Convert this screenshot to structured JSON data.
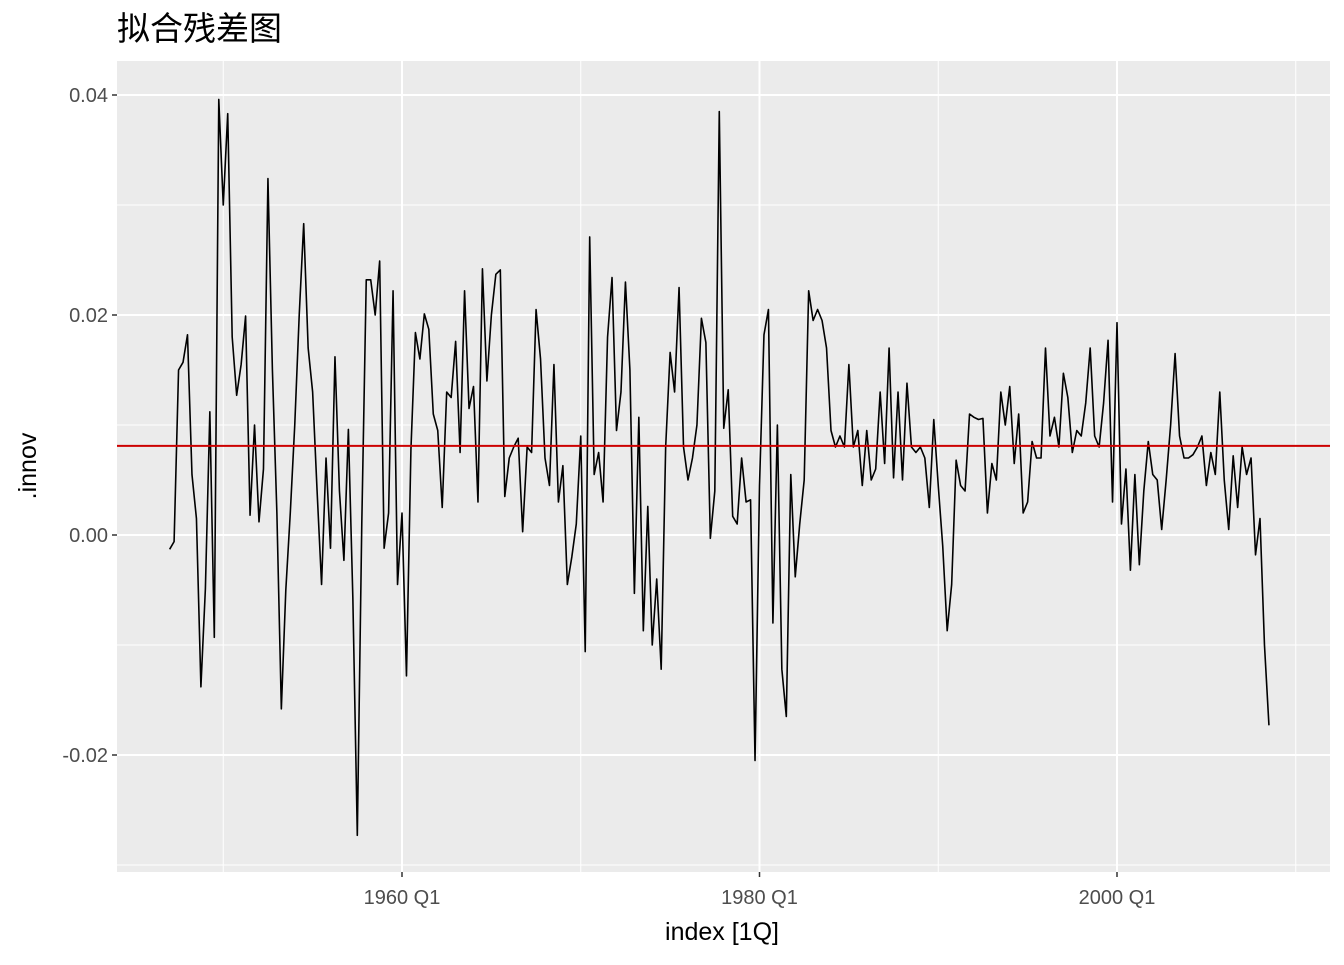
{
  "chart_data": {
    "type": "line",
    "title": "拟合残差图",
    "xlabel": "index [1Q]",
    "ylabel": ".innov",
    "x_start_year": 1947,
    "x_ticks": [
      "1960 Q1",
      "1980 Q1",
      "2000 Q1"
    ],
    "y_ticks": [
      "-0.02",
      "0.00",
      "0.02",
      "0.04"
    ],
    "ylim": [
      -0.03,
      0.0405
    ],
    "grid": true,
    "series": [
      {
        "color": "#000000",
        "values": [
          -0.0013,
          -0.0006,
          0.015,
          0.0157,
          0.0182,
          0.0055,
          0.0015,
          -0.0138,
          -0.0049,
          0.0112,
          -0.0093,
          0.0396,
          0.03,
          0.0383,
          0.018,
          0.0127,
          0.0155,
          0.0199,
          0.0018,
          0.01,
          0.0012,
          0.006,
          0.0324,
          0.015,
          0.002,
          -0.0158,
          -0.005,
          0.002,
          0.01,
          0.02,
          0.0283,
          0.017,
          0.013,
          0.004,
          -0.0045,
          0.007,
          -0.0012,
          0.0162,
          0.004,
          -0.0023,
          0.0096,
          -0.0057,
          -0.0273,
          0.001,
          0.0232,
          0.0232,
          0.02,
          0.0249,
          -0.0012,
          0.002,
          0.0222,
          -0.0045,
          0.002,
          -0.0128,
          0.0078,
          0.0184,
          0.016,
          0.0201,
          0.0187,
          0.011,
          0.0095,
          0.0025,
          0.013,
          0.0125,
          0.0176,
          0.0075,
          0.0222,
          0.0115,
          0.0135,
          0.003,
          0.0242,
          0.014,
          0.02,
          0.0237,
          0.0241,
          0.0035,
          0.007,
          0.008,
          0.0088,
          0.0003,
          0.008,
          0.0075,
          0.0205,
          0.016,
          0.007,
          0.0045,
          0.0155,
          0.003,
          0.0063,
          -0.0045,
          -0.002,
          0.001,
          0.009,
          -0.0106,
          0.0271,
          0.0055,
          0.0075,
          0.003,
          0.018,
          0.0234,
          0.0095,
          0.013,
          0.023,
          0.015,
          -0.0053,
          0.0107,
          -0.0087,
          0.0026,
          -0.01,
          -0.004,
          -0.0122,
          0.008,
          0.0166,
          0.013,
          0.0225,
          0.008,
          0.005,
          0.007,
          0.01,
          0.0197,
          0.0175,
          -0.0003,
          0.004,
          0.0385,
          0.0097,
          0.0132,
          0.0017,
          0.001,
          0.007,
          0.003,
          0.0032,
          -0.0205,
          0.0045,
          0.0182,
          0.0205,
          -0.008,
          0.01,
          -0.0122,
          -0.0165,
          0.0055,
          -0.0038,
          0.001,
          0.005,
          0.0222,
          0.0195,
          0.0205,
          0.0195,
          0.017,
          0.0095,
          0.008,
          0.009,
          0.008,
          0.0155,
          0.008,
          0.0095,
          0.0045,
          0.0095,
          0.005,
          0.006,
          0.013,
          0.0065,
          0.017,
          0.0052,
          0.013,
          0.005,
          0.0138,
          0.008,
          0.0075,
          0.008,
          0.007,
          0.0025,
          0.0105,
          0.0045,
          -0.001,
          -0.0087,
          -0.0045,
          0.0068,
          0.0045,
          0.004,
          0.011,
          0.0107,
          0.0105,
          0.0106,
          0.002,
          0.0065,
          0.005,
          0.013,
          0.01,
          0.0135,
          0.0065,
          0.011,
          0.002,
          0.003,
          0.0085,
          0.007,
          0.007,
          0.017,
          0.009,
          0.0107,
          0.008,
          0.0147,
          0.0125,
          0.0075,
          0.0095,
          0.009,
          0.012,
          0.017,
          0.009,
          0.008,
          0.012,
          0.0177,
          0.003,
          0.0193,
          0.001,
          0.006,
          -0.0032,
          0.0055,
          -0.0027,
          0.004,
          0.0085,
          0.0055,
          0.005,
          0.0005,
          0.005,
          0.01,
          0.0165,
          0.009,
          0.007,
          0.007,
          0.0073,
          0.008,
          0.009,
          0.0045,
          0.0075,
          0.0055,
          0.013,
          0.005,
          0.0005,
          0.0072,
          0.0025,
          0.008,
          0.0055,
          0.007,
          -0.0018,
          0.0015,
          -0.01,
          -0.0173
        ]
      }
    ],
    "hline": {
      "value": 0.0081,
      "color": "#cc0000"
    }
  },
  "style": {
    "panel_bg": "#ebebeb",
    "grid_major": "#ffffff",
    "line_color": "#000000",
    "hline_color": "#cc0000"
  }
}
